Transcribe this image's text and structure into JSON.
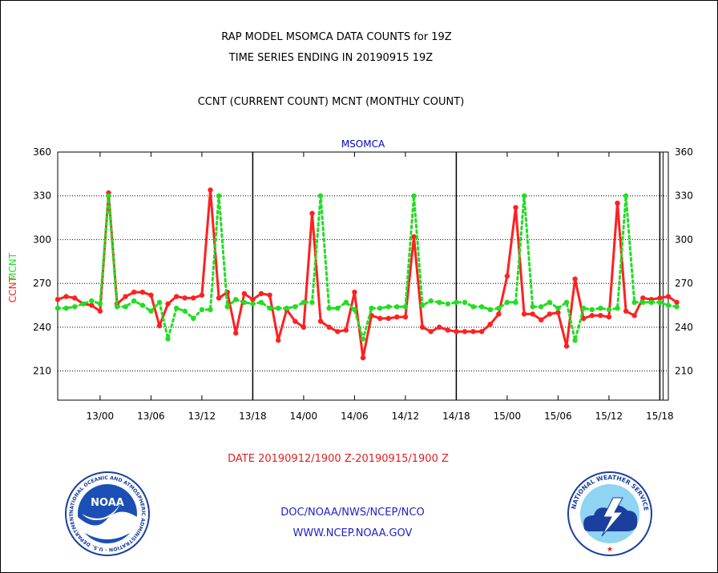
{
  "header": {
    "line1": "RAP MODEL MSOMCA DATA COUNTS for 19Z",
    "line2": "TIME SERIES ENDING IN 20190915 19Z",
    "line3": "CCNT (CURRENT COUNT) MCNT (MONTHLY COUNT)"
  },
  "chart_data": {
    "type": "line",
    "title": "MSOMCA",
    "ylabel_left": "CCNT",
    "ylabel_right": "MCNT",
    "xlabel": "DATE 20190912/1900 Z-20190915/1900 Z",
    "ylim": [
      190,
      360
    ],
    "yticks": [
      360,
      330,
      300,
      270,
      240,
      210
    ],
    "x_range_hours": [
      0,
      72
    ],
    "x_tick_hours": [
      5,
      11,
      17,
      23,
      29,
      35,
      41,
      47,
      53,
      59,
      65,
      71
    ],
    "x_tick_labels": [
      "13/00",
      "13/06",
      "13/12",
      "13/18",
      "14/00",
      "14/06",
      "14/12",
      "14/18",
      "15/00",
      "15/06",
      "15/12",
      "15/18"
    ],
    "day_boundaries_hours": [
      23,
      47,
      71
    ],
    "grid": true,
    "colors": {
      "ccnt": "#ff2020",
      "mcnt": "#22dd22",
      "title": "#0000cc",
      "date": "#e02020",
      "footer": "#2222cc"
    },
    "series": [
      {
        "name": "CCNT",
        "style": "solid",
        "values": [
          259,
          261,
          260,
          256,
          255,
          251,
          332,
          256,
          261,
          264,
          264,
          262,
          241,
          256,
          261,
          260,
          260,
          262,
          334,
          260,
          264,
          236,
          263,
          259,
          263,
          262,
          231,
          252,
          244,
          240,
          318,
          244,
          240,
          237,
          238,
          264,
          219,
          248,
          246,
          246,
          247,
          247,
          302,
          240,
          237,
          240,
          238,
          237,
          237,
          237,
          237,
          242,
          249,
          275,
          322,
          249,
          249,
          245,
          249,
          250,
          227,
          273,
          246,
          248,
          248,
          247,
          325,
          251,
          248,
          260,
          259,
          260,
          261,
          257
        ]
      },
      {
        "name": "MCNT",
        "style": "dotted",
        "values": [
          253,
          253,
          254,
          256,
          258,
          256,
          330,
          254,
          254,
          258,
          255,
          251,
          257,
          232,
          253,
          251,
          246,
          252,
          252,
          330,
          254,
          259,
          257,
          256,
          257,
          253,
          253,
          253,
          254,
          257,
          257,
          330,
          253,
          253,
          257,
          252,
          232,
          253,
          253,
          254,
          254,
          254,
          330,
          255,
          258,
          257,
          256,
          257,
          257,
          254,
          254,
          252,
          253,
          257,
          257,
          330,
          254,
          254,
          257,
          253,
          257,
          231,
          253,
          252,
          253,
          252,
          253,
          330,
          257,
          257,
          257,
          257,
          255,
          254
        ]
      }
    ]
  },
  "footer": {
    "line1": "DOC/NOAA/NWS/NCEP/NCO",
    "line2": "WWW.NCEP.NOAA.GOV"
  },
  "logos": {
    "noaa_center": "NOAA",
    "noaa_ring": "NATIONAL OCEANIC AND ATMOSPHERIC ADMINISTRATION · U.S. DEPARTMENT OF COMMERCE ·",
    "nws_ring": "NATIONAL WEATHER SERVICE"
  }
}
